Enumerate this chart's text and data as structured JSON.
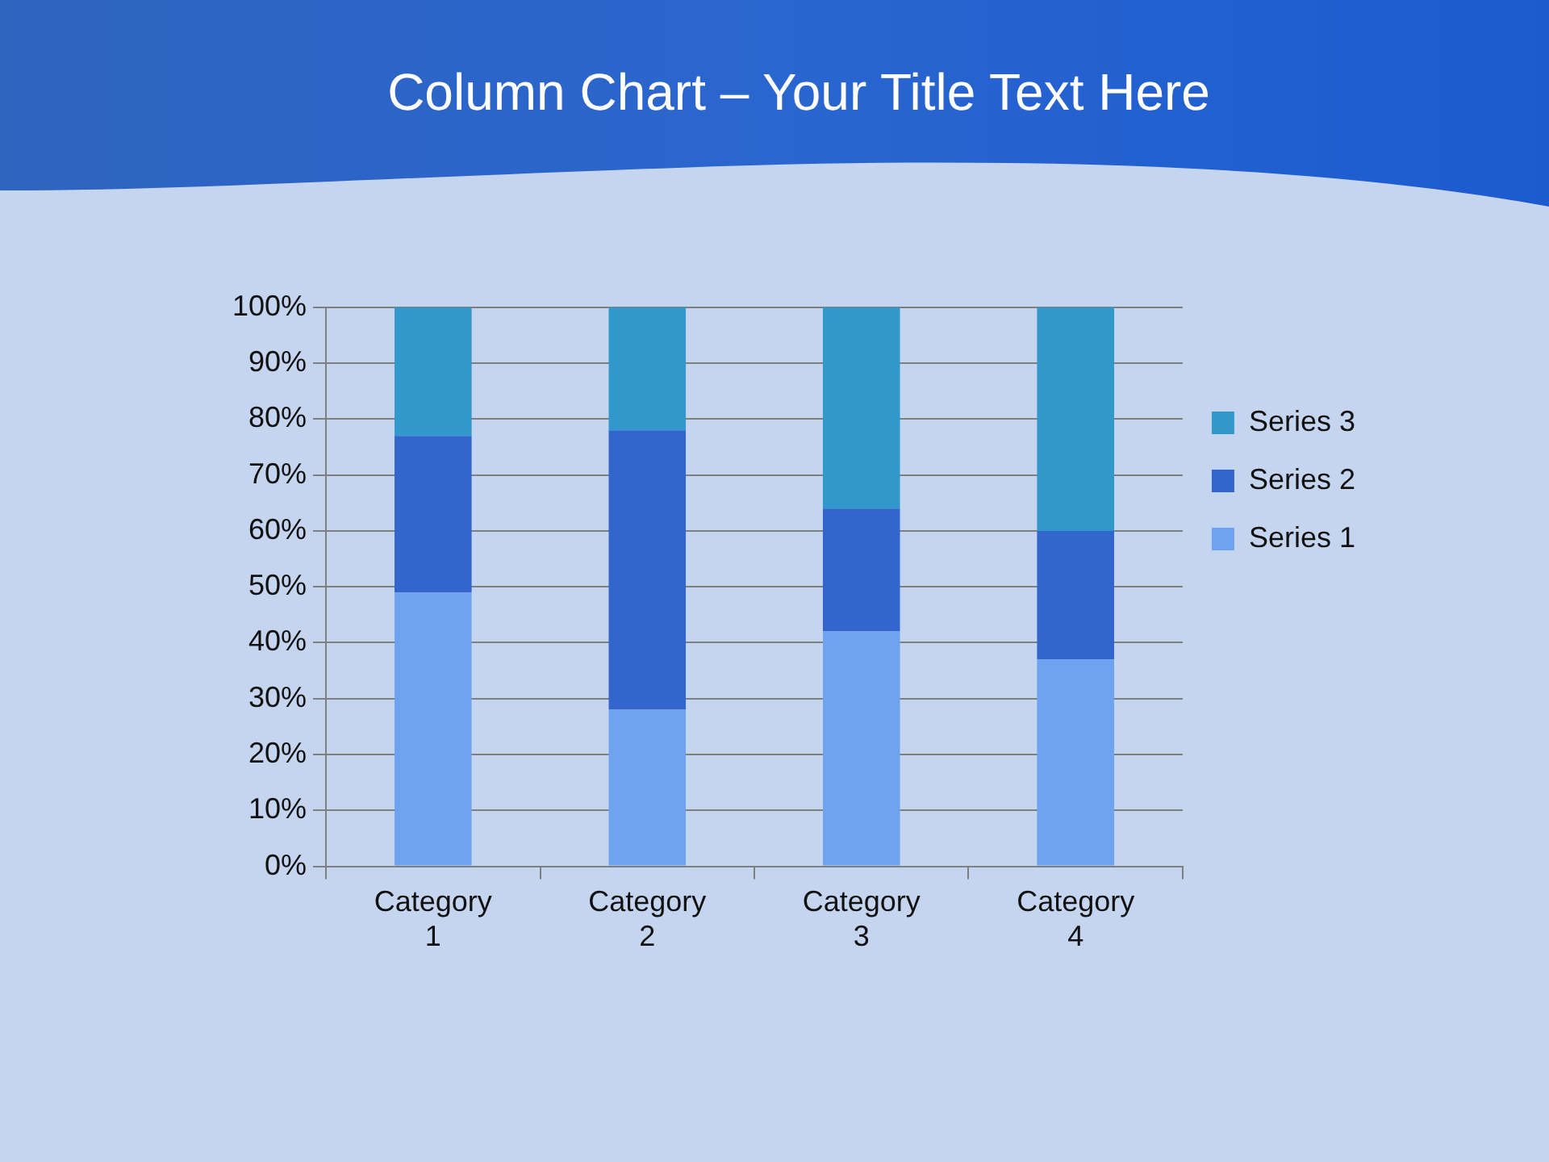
{
  "chart_data": {
    "type": "bar",
    "title": "Column Chart – Your Title Text Here",
    "categories": [
      "Category 1",
      "Category 2",
      "Category 3",
      "Category 4"
    ],
    "series": [
      {
        "name": "Series 1",
        "color": "#6fa3ef",
        "values": [
          49,
          28,
          42,
          37
        ]
      },
      {
        "name": "Series 2",
        "color": "#3266cc",
        "values": [
          28,
          50,
          22,
          23
        ]
      },
      {
        "name": "Series 3",
        "color": "#3198cc",
        "values": [
          23,
          22,
          36,
          40
        ]
      }
    ],
    "stacked": true,
    "ylim": [
      0,
      100
    ],
    "yticks": [
      {
        "value": 0,
        "label": "0%"
      },
      {
        "value": 10,
        "label": "10%"
      },
      {
        "value": 20,
        "label": "20%"
      },
      {
        "value": 30,
        "label": "30%"
      },
      {
        "value": 40,
        "label": "40%"
      },
      {
        "value": 50,
        "label": "50%"
      },
      {
        "value": 60,
        "label": "60%"
      },
      {
        "value": 70,
        "label": "70%"
      },
      {
        "value": 80,
        "label": "80%"
      },
      {
        "value": 90,
        "label": "90%"
      },
      {
        "value": 100,
        "label": "100%"
      }
    ],
    "grid": "y",
    "legend": "right"
  }
}
